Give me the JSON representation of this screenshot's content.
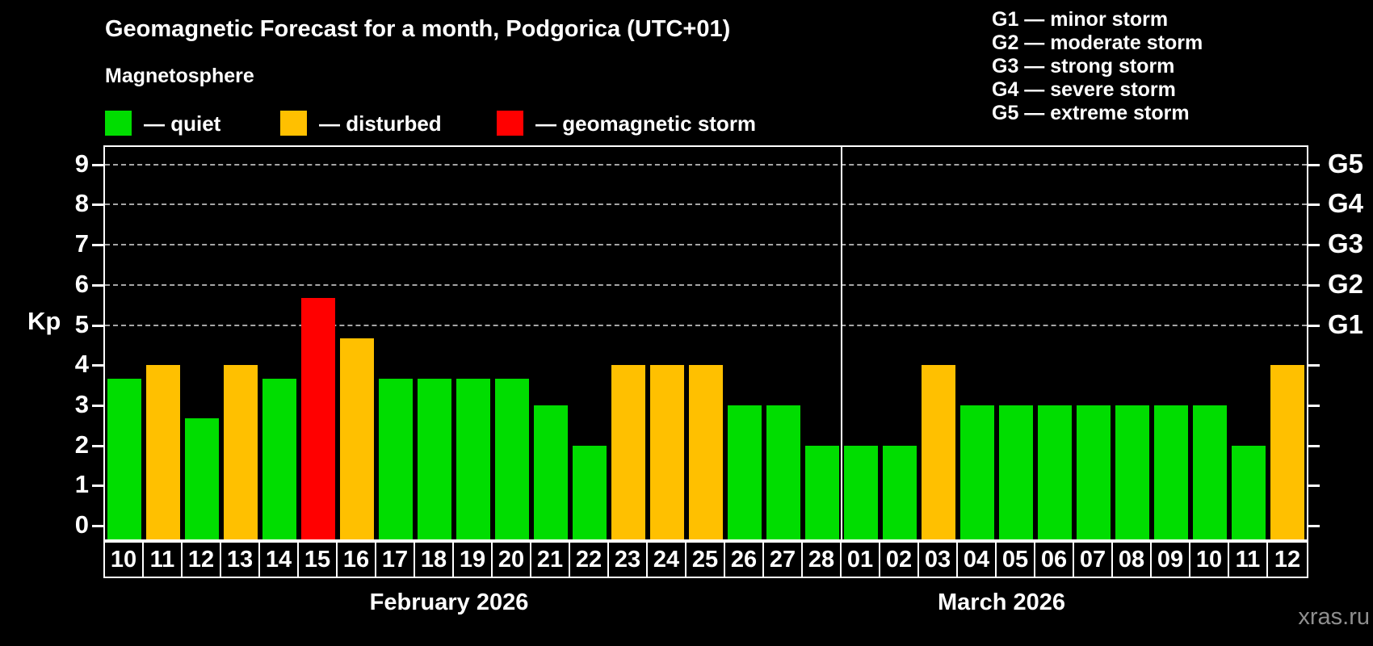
{
  "header": {
    "title": "Geomagnetic Forecast for a month, Podgorica (UTC+01)",
    "subtitle": "Magnetosphere"
  },
  "legend": {
    "items": [
      {
        "key": "quiet",
        "label": "— quiet"
      },
      {
        "key": "disturbed",
        "label": "— disturbed"
      },
      {
        "key": "storm",
        "label": "— geomagnetic storm"
      }
    ]
  },
  "g_legend": {
    "lines": [
      "G1 — minor storm",
      "G2 — moderate storm",
      "G3 — strong storm",
      "G4 — severe storm",
      "G5 — extreme storm"
    ]
  },
  "colors": {
    "quiet": "#00dd00",
    "disturbed": "#ffc000",
    "storm": "#ff0000",
    "background": "#000000",
    "gridline": "#a6a6a6",
    "axis": "#ffffff",
    "watermark": "#8f8f8f"
  },
  "axes": {
    "kp_label": "Kp",
    "y_ticks": [
      0,
      1,
      2,
      3,
      4,
      5,
      6,
      7,
      8,
      9
    ],
    "gridlines_kp": [
      5,
      6,
      7,
      8,
      9
    ],
    "right_labels": [
      {
        "label": "G5",
        "kp": 9
      },
      {
        "label": "G4",
        "kp": 8
      },
      {
        "label": "G3",
        "kp": 7
      },
      {
        "label": "G2",
        "kp": 6
      },
      {
        "label": "G1",
        "kp": 5
      }
    ]
  },
  "months": [
    {
      "label": "February 2026",
      "day_count": 19
    },
    {
      "label": "March 2026",
      "day_count": 12
    }
  ],
  "watermark": "xras.ru",
  "chart_data": {
    "type": "bar",
    "title": "Geomagnetic Forecast for a month, Podgorica (UTC+01)",
    "xlabel": "",
    "ylabel": "Kp",
    "ylim": [
      0,
      9.4
    ],
    "grid": "horizontal dashed lines at Kp 5-9 (G1-G5 storm levels)",
    "legend_position": "top",
    "categories": [
      "10",
      "11",
      "12",
      "13",
      "14",
      "15",
      "16",
      "17",
      "18",
      "19",
      "20",
      "21",
      "22",
      "23",
      "24",
      "25",
      "26",
      "27",
      "28",
      "01",
      "02",
      "03",
      "04",
      "05",
      "06",
      "07",
      "08",
      "09",
      "10",
      "11",
      "12"
    ],
    "points": [
      {
        "day": "10",
        "month": "February 2026",
        "kp": 3.67,
        "status": "quiet"
      },
      {
        "day": "11",
        "month": "February 2026",
        "kp": 4,
        "status": "disturbed"
      },
      {
        "day": "12",
        "month": "February 2026",
        "kp": 2.67,
        "status": "quiet"
      },
      {
        "day": "13",
        "month": "February 2026",
        "kp": 4,
        "status": "disturbed"
      },
      {
        "day": "14",
        "month": "February 2026",
        "kp": 3.67,
        "status": "quiet"
      },
      {
        "day": "15",
        "month": "February 2026",
        "kp": 5.67,
        "status": "storm"
      },
      {
        "day": "16",
        "month": "February 2026",
        "kp": 4.67,
        "status": "disturbed"
      },
      {
        "day": "17",
        "month": "February 2026",
        "kp": 3.67,
        "status": "quiet"
      },
      {
        "day": "18",
        "month": "February 2026",
        "kp": 3.67,
        "status": "quiet"
      },
      {
        "day": "19",
        "month": "February 2026",
        "kp": 3.67,
        "status": "quiet"
      },
      {
        "day": "20",
        "month": "February 2026",
        "kp": 3.67,
        "status": "quiet"
      },
      {
        "day": "21",
        "month": "February 2026",
        "kp": 3,
        "status": "quiet"
      },
      {
        "day": "22",
        "month": "February 2026",
        "kp": 2,
        "status": "quiet"
      },
      {
        "day": "23",
        "month": "February 2026",
        "kp": 4,
        "status": "disturbed"
      },
      {
        "day": "24",
        "month": "February 2026",
        "kp": 4,
        "status": "disturbed"
      },
      {
        "day": "25",
        "month": "February 2026",
        "kp": 4,
        "status": "disturbed"
      },
      {
        "day": "26",
        "month": "February 2026",
        "kp": 3,
        "status": "quiet"
      },
      {
        "day": "27",
        "month": "February 2026",
        "kp": 3,
        "status": "quiet"
      },
      {
        "day": "28",
        "month": "February 2026",
        "kp": 2,
        "status": "quiet"
      },
      {
        "day": "01",
        "month": "March 2026",
        "kp": 2,
        "status": "quiet"
      },
      {
        "day": "02",
        "month": "March 2026",
        "kp": 2,
        "status": "quiet"
      },
      {
        "day": "03",
        "month": "March 2026",
        "kp": 4,
        "status": "disturbed"
      },
      {
        "day": "04",
        "month": "March 2026",
        "kp": 3,
        "status": "quiet"
      },
      {
        "day": "05",
        "month": "March 2026",
        "kp": 3,
        "status": "quiet"
      },
      {
        "day": "06",
        "month": "March 2026",
        "kp": 3,
        "status": "quiet"
      },
      {
        "day": "07",
        "month": "March 2026",
        "kp": 3,
        "status": "quiet"
      },
      {
        "day": "08",
        "month": "March 2026",
        "kp": 3,
        "status": "quiet"
      },
      {
        "day": "09",
        "month": "March 2026",
        "kp": 3,
        "status": "quiet"
      },
      {
        "day": "10",
        "month": "March 2026",
        "kp": 3,
        "status": "quiet"
      },
      {
        "day": "11",
        "month": "March 2026",
        "kp": 2,
        "status": "quiet"
      },
      {
        "day": "12",
        "month": "March 2026",
        "kp": 4,
        "status": "disturbed"
      }
    ]
  }
}
